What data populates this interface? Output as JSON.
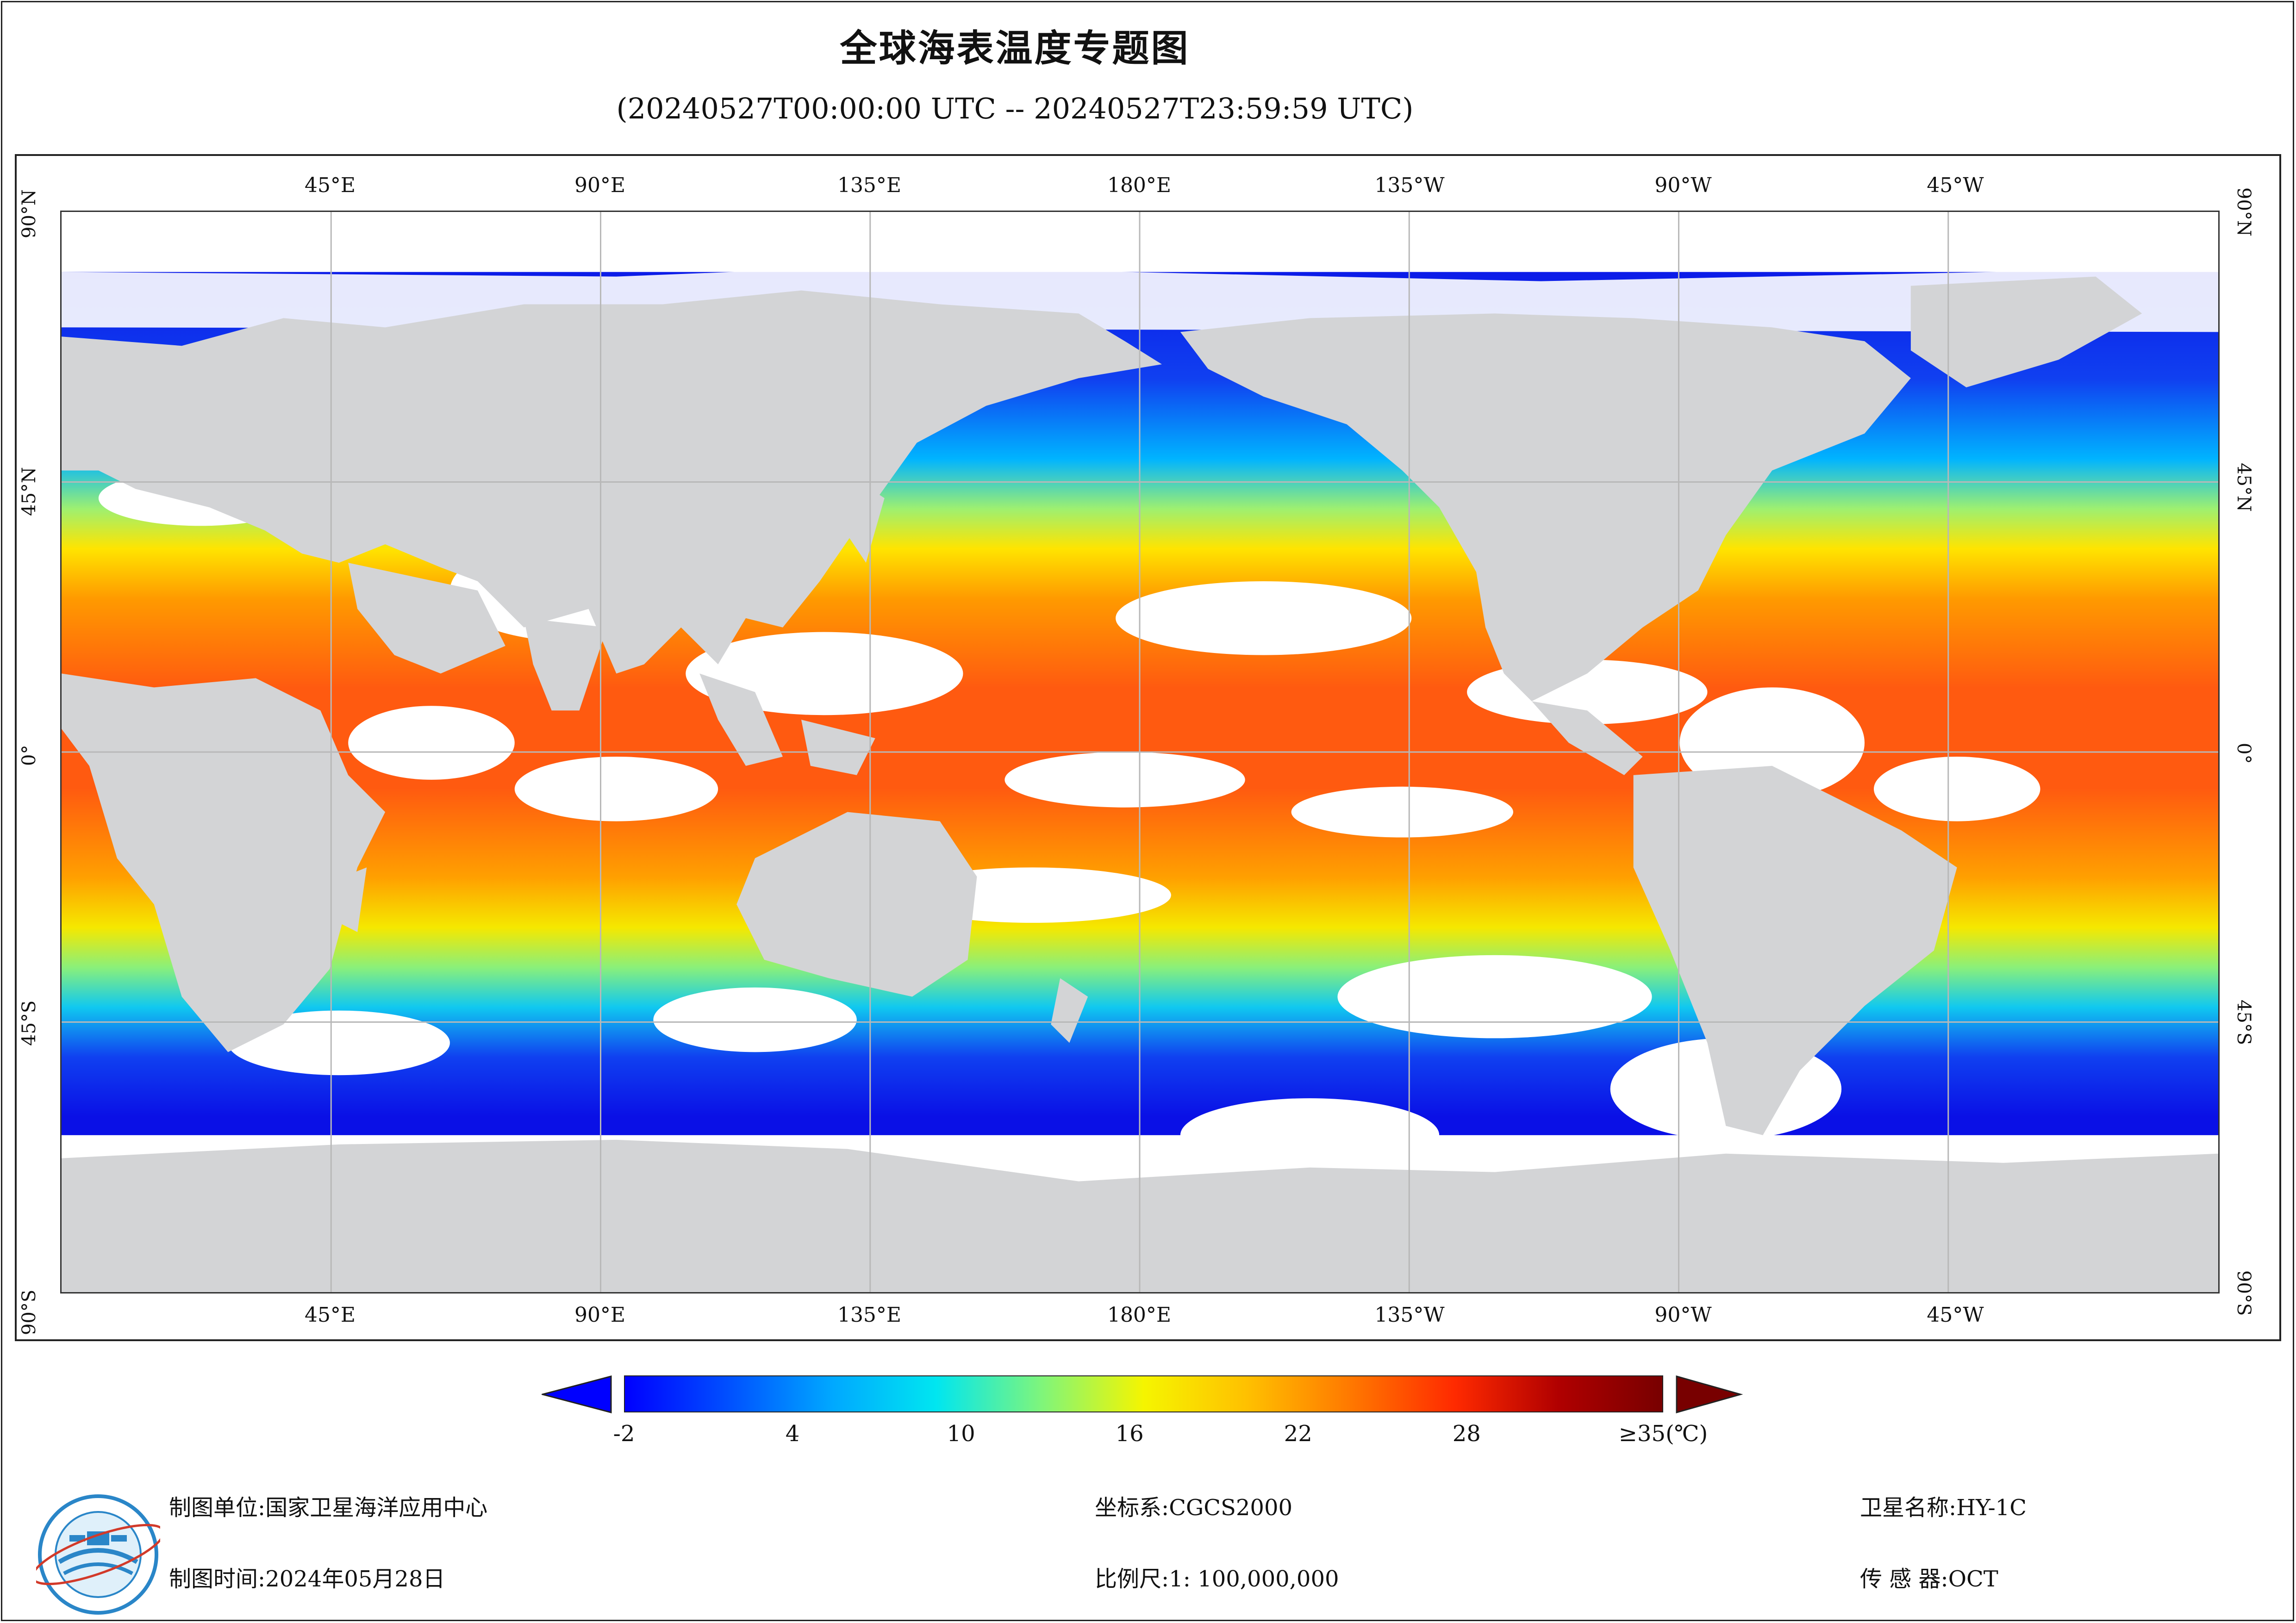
{
  "title": "全球海表温度专题图",
  "subtitle": "(20240527T00:00:00 UTC -- 20240527T23:59:59 UTC)",
  "map": {
    "lon_labels": [
      "45°E",
      "90°E",
      "135°E",
      "180°E",
      "135°W",
      "90°W",
      "45°W"
    ],
    "lat_labels": [
      "90°N",
      "45°N",
      "0°",
      "45°S",
      "90°S"
    ],
    "land_color": "#d3d4d6",
    "cloud_color": "#ffffff",
    "grid_color": "#b8b8b8"
  },
  "colorbar": {
    "ticks": [
      "-2",
      "4",
      "10",
      "16",
      "22",
      "28",
      "≥35(℃)"
    ],
    "tick_values": [
      -2,
      4,
      10,
      16,
      22,
      28,
      35
    ],
    "min": -2,
    "max": 35,
    "unit": "℃",
    "colors": [
      "#0000ff",
      "#0050ff",
      "#00a8ff",
      "#00e6f0",
      "#7df57d",
      "#f5f500",
      "#ffc000",
      "#ff7800",
      "#ff2a00",
      "#b00000",
      "#780000"
    ]
  },
  "footer": {
    "unit_label": "制图单位:",
    "unit_value": "国家卫星海洋应用中心",
    "time_label": "制图时间:",
    "time_value": "2024年05月28日",
    "crs_label": "坐标系:",
    "crs_value": "CGCS2000",
    "scale_label": "比例尺:",
    "scale_value": "1: 100,000,000",
    "satellite_label": "卫星名称:",
    "satellite_value": "HY-1C",
    "sensor_label": "传 感 器:",
    "sensor_value": "OCT"
  },
  "logo_icon": "nsoas-logo-icon"
}
